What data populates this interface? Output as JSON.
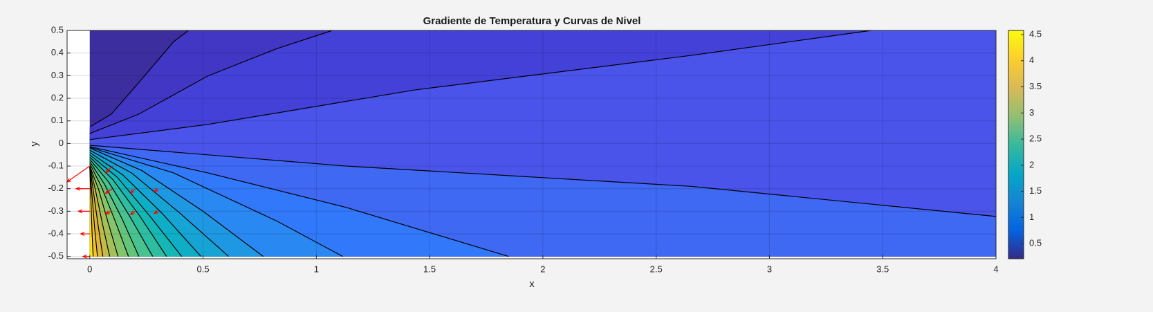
{
  "chart_data": {
    "type": "contour",
    "title": "Gradiente de Temperatura y Curvas de Nivel",
    "xlabel": "x",
    "ylabel": "y",
    "xlim": [
      -0.1,
      4
    ],
    "ylim": [
      -0.51,
      0.5
    ],
    "xticks": [
      0,
      0.5,
      1,
      1.5,
      2,
      2.5,
      3,
      3.5,
      4
    ],
    "yticks": [
      -0.5,
      -0.4,
      -0.3,
      -0.2,
      -0.1,
      0,
      0.1,
      0.2,
      0.3,
      0.4,
      0.5
    ],
    "grid": true,
    "base_color": "#3c2e9e",
    "line_color": "#000000",
    "contours": [
      {
        "color": "#4137c4",
        "x": [
          0.003,
          0.095,
          0.217,
          0.37,
          0.436
        ],
        "y": [
          0.075,
          0.13,
          0.27,
          0.45,
          0.5
        ]
      },
      {
        "color": "#4341d8",
        "x": [
          0,
          0.217,
          0.52,
          0.827,
          1.071
        ],
        "y": [
          0.044,
          0.13,
          0.298,
          0.42,
          0.5
        ]
      },
      {
        "color": "#4a54ea",
        "x": [
          0,
          0.52,
          1.437,
          2.658,
          3.45
        ],
        "y": [
          0.017,
          0.084,
          0.237,
          0.39,
          0.5
        ]
      },
      {
        "color": "#3f68f3",
        "x": [
          0,
          1.132,
          2.657,
          4
        ],
        "y": [
          -0.008,
          -0.1,
          -0.19,
          -0.323
        ]
      },
      {
        "color": "#3178fb",
        "x": [
          0,
          0.52,
          1.132,
          1.849
        ],
        "y": [
          -0.014,
          -0.13,
          -0.283,
          -0.5
        ]
      },
      {
        "color": "#2a88f2",
        "x": [
          0,
          0.369,
          0.827,
          1.117
        ],
        "y": [
          -0.017,
          -0.13,
          -0.344,
          -0.5
        ]
      },
      {
        "color": "#1e98e2",
        "x": [
          0,
          0.23,
          0.5,
          0.766
        ],
        "y": [
          -0.02,
          -0.12,
          -0.3,
          -0.5
        ]
      },
      {
        "color": "#16a4d4",
        "x": [
          0,
          0.184,
          0.4,
          0.613
        ],
        "y": [
          -0.03,
          -0.13,
          -0.31,
          -0.5
        ]
      },
      {
        "color": "#0eaec6",
        "x": [
          0,
          0.147,
          0.32,
          0.491
        ],
        "y": [
          -0.04,
          -0.14,
          -0.31,
          -0.5
        ]
      },
      {
        "color": "#14b7b4",
        "x": [
          0,
          0.122,
          0.264,
          0.406
        ],
        "y": [
          -0.05,
          -0.15,
          -0.32,
          -0.5
        ]
      },
      {
        "color": "#2dbea2",
        "x": [
          0,
          0.102,
          0.22,
          0.339
        ],
        "y": [
          -0.06,
          -0.16,
          -0.32,
          -0.5
        ]
      },
      {
        "color": "#47c290",
        "x": [
          0,
          0.083,
          0.181,
          0.278
        ],
        "y": [
          -0.07,
          -0.17,
          -0.33,
          -0.5
        ]
      },
      {
        "color": "#64c47c",
        "x": [
          0,
          0.065,
          0.141,
          0.217
        ],
        "y": [
          -0.08,
          -0.18,
          -0.33,
          -0.5
        ]
      },
      {
        "color": "#84c46a",
        "x": [
          0,
          0.051,
          0.111,
          0.171
        ],
        "y": [
          -0.09,
          -0.19,
          -0.34,
          -0.5
        ]
      },
      {
        "color": "#a4c058",
        "x": [
          0,
          0.038,
          0.081,
          0.125
        ],
        "y": [
          -0.1,
          -0.2,
          -0.35,
          -0.5
        ]
      },
      {
        "color": "#c3bb4a",
        "x": [
          0,
          0.026,
          0.057,
          0.088
        ],
        "y": [
          -0.1,
          -0.21,
          -0.36,
          -0.5
        ]
      },
      {
        "color": "#dfb53c",
        "x": [
          0,
          0.017,
          0.038,
          0.058
        ],
        "y": [
          -0.1,
          -0.22,
          -0.37,
          -0.5
        ]
      },
      {
        "color": "#f2c52e",
        "x": [
          0,
          0.01,
          0.022,
          0.034
        ],
        "y": [
          -0.1,
          -0.23,
          -0.38,
          -0.5
        ]
      },
      {
        "color": "#f9e21a",
        "x": [
          0,
          0.005,
          0.01,
          0.015
        ],
        "y": [
          -0.1,
          -0.24,
          -0.39,
          -0.5
        ]
      }
    ],
    "quiver": {
      "color": "#ff0000",
      "x": [
        0,
        0,
        0,
        0,
        0,
        0.1,
        0.1,
        0.1,
        0.2,
        0.2,
        0.3,
        0.3
      ],
      "y": [
        -0.1,
        -0.2,
        -0.3,
        -0.4,
        -0.5,
        -0.1,
        -0.2,
        -0.3,
        -0.2,
        -0.3,
        -0.2,
        -0.3
      ],
      "u": [
        -0.1,
        -0.06,
        -0.05,
        -0.04,
        -0.03,
        -0.03,
        -0.03,
        -0.03,
        -0.02,
        -0.02,
        -0.015,
        -0.015
      ],
      "v": [
        -0.07,
        0,
        0,
        0,
        0,
        -0.03,
        -0.02,
        -0.01,
        -0.02,
        -0.015,
        -0.015,
        -0.01
      ]
    },
    "colorbar": {
      "clim": [
        0.21,
        4.58
      ],
      "ticks": [
        0.5,
        1,
        1.5,
        2,
        2.5,
        3,
        3.5,
        4,
        4.5
      ],
      "colormap": [
        "#352a87",
        "#0363e1",
        "#1485d4",
        "#06a7c6",
        "#38b99e",
        "#92bf73",
        "#d9ba56",
        "#fcce2e",
        "#f9fb0e"
      ]
    }
  }
}
